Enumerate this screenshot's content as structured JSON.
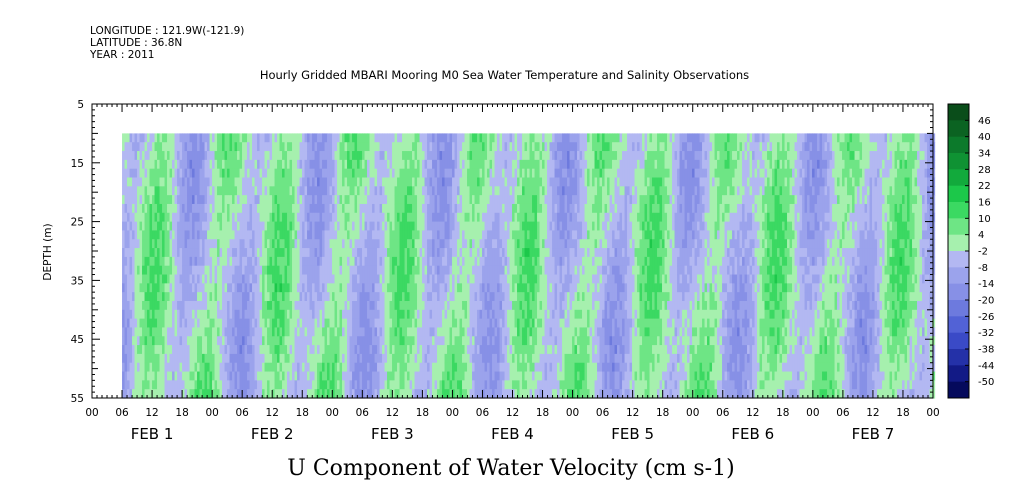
{
  "header": {
    "longitude": "LONGITUDE : 121.9W(-121.9)",
    "latitude": "LATITUDE : 36.8N",
    "year": "YEAR : 2011"
  },
  "chart_data": {
    "type": "heatmap",
    "title": "Hourly Gridded MBARI Mooring M0 Sea Water Temperature and Salinity Observations",
    "xlabel": "U Component of Water Velocity (cm s-1)",
    "ylabel": "DEPTH (m)",
    "y_ticks": [
      "5",
      "15",
      "25",
      "35",
      "45",
      "55"
    ],
    "y_range": [
      5,
      55
    ],
    "y_inverted": true,
    "data_depth_range": [
      10,
      55
    ],
    "x_range_hours": [
      0,
      168
    ],
    "data_start_hour": 6,
    "hour_tick_labels": [
      "00",
      "06",
      "12",
      "18",
      "00",
      "06",
      "12",
      "18",
      "00",
      "06",
      "12",
      "18",
      "00",
      "06",
      "12",
      "18",
      "00",
      "06",
      "12",
      "18",
      "00",
      "06",
      "12",
      "18",
      "00",
      "06",
      "12",
      "18",
      "00"
    ],
    "day_labels": [
      "FEB  1",
      "FEB  2",
      "FEB  3",
      "FEB  4",
      "FEB  5",
      "FEB  6",
      "FEB  7"
    ],
    "colorbar_levels": [
      "46",
      "40",
      "34",
      "28",
      "22",
      "16",
      "10",
      "4",
      "-2",
      "-8",
      "-14",
      "-20",
      "-26",
      "-32",
      "-38",
      "-44",
      "-50"
    ],
    "colorbar_colors": [
      "#0a4d1a",
      "#0b6322",
      "#0c7a2b",
      "#0f9233",
      "#12aa3c",
      "#1cc84a",
      "#3bd962",
      "#6ee585",
      "#a6f0ae",
      "#b3b8f2",
      "#9ba3ec",
      "#8790e6",
      "#6d7ade",
      "#5262d6",
      "#3a4ac7",
      "#2431a8",
      "#121a86",
      "#050a5c"
    ],
    "legend_placement": "right"
  }
}
